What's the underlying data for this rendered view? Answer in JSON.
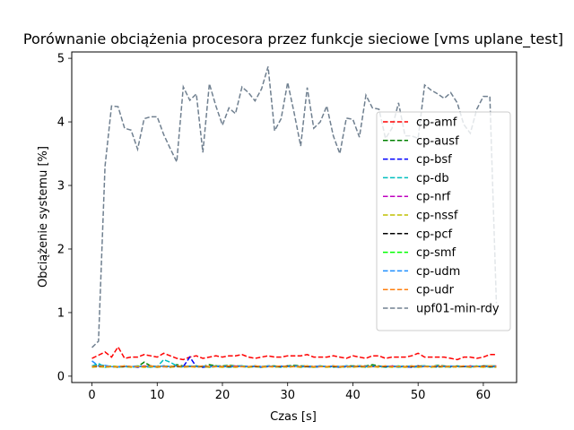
{
  "chart_data": {
    "type": "line",
    "title": "Porównanie obciążenia procesora przez funkcje sieciowe [vms uplane_test]",
    "xlabel": "Czas [s]",
    "ylabel": "Obciążenie systemu [%]",
    "xlim": [
      -3.1,
      65.1
    ],
    "ylim": [
      -0.1,
      5.1
    ],
    "x_ticks": [
      0,
      10,
      20,
      30,
      40,
      50,
      60
    ],
    "y_ticks": [
      0,
      1,
      2,
      3,
      4,
      5
    ],
    "grid": false,
    "legend_position": "right",
    "line_style": "dashed",
    "series": [
      {
        "name": "cp-amf",
        "color": "#ff0000",
        "values": [
          0.28,
          0.33,
          0.38,
          0.3,
          0.46,
          0.28,
          0.3,
          0.3,
          0.34,
          0.32,
          0.3,
          0.36,
          0.32,
          0.28,
          0.26,
          0.3,
          0.32,
          0.28,
          0.3,
          0.32,
          0.3,
          0.32,
          0.32,
          0.34,
          0.3,
          0.28,
          0.3,
          0.32,
          0.3,
          0.3,
          0.32,
          0.32,
          0.32,
          0.34,
          0.3,
          0.3,
          0.3,
          0.32,
          0.3,
          0.28,
          0.32,
          0.3,
          0.28,
          0.32,
          0.32,
          0.28,
          0.3,
          0.3,
          0.3,
          0.32,
          0.36,
          0.3,
          0.3,
          0.3,
          0.3,
          0.28,
          0.26,
          0.3,
          0.3,
          0.28,
          0.3,
          0.34,
          0.34
        ]
      },
      {
        "name": "cp-ausf",
        "color": "#008000",
        "values": [
          0.16,
          0.18,
          0.16,
          0.15,
          0.14,
          0.16,
          0.15,
          0.15,
          0.22,
          0.16,
          0.15,
          0.16,
          0.15,
          0.18,
          0.16,
          0.15,
          0.16,
          0.15,
          0.18,
          0.16,
          0.16,
          0.17,
          0.16,
          0.16,
          0.15,
          0.16,
          0.15,
          0.16,
          0.16,
          0.15,
          0.16,
          0.17,
          0.16,
          0.16,
          0.15,
          0.16,
          0.15,
          0.16,
          0.15,
          0.16,
          0.16,
          0.16,
          0.16,
          0.18,
          0.16,
          0.15,
          0.16,
          0.15,
          0.16,
          0.15,
          0.16,
          0.16,
          0.15,
          0.17,
          0.16,
          0.15,
          0.16,
          0.15,
          0.16,
          0.15,
          0.16,
          0.16,
          0.16
        ]
      },
      {
        "name": "cp-bsf",
        "color": "#0000ff",
        "values": [
          0.15,
          0.16,
          0.15,
          0.15,
          0.14,
          0.15,
          0.15,
          0.14,
          0.15,
          0.15,
          0.14,
          0.15,
          0.14,
          0.16,
          0.15,
          0.3,
          0.15,
          0.14,
          0.15,
          0.15,
          0.15,
          0.15,
          0.15,
          0.16,
          0.15,
          0.15,
          0.14,
          0.15,
          0.15,
          0.15,
          0.15,
          0.16,
          0.15,
          0.15,
          0.14,
          0.15,
          0.15,
          0.15,
          0.14,
          0.15,
          0.15,
          0.15,
          0.15,
          0.15,
          0.15,
          0.15,
          0.15,
          0.15,
          0.15,
          0.14,
          0.15,
          0.15,
          0.15,
          0.15,
          0.15,
          0.15,
          0.15,
          0.15,
          0.15,
          0.15,
          0.15,
          0.15,
          0.15
        ]
      },
      {
        "name": "cp-db",
        "color": "#00bfbf",
        "values": [
          0.16,
          0.2,
          0.14,
          0.15,
          0.14,
          0.15,
          0.14,
          0.15,
          0.15,
          0.14,
          0.15,
          0.26,
          0.22,
          0.16,
          0.14,
          0.15,
          0.16,
          0.15,
          0.14,
          0.15,
          0.15,
          0.14,
          0.15,
          0.15,
          0.14,
          0.15,
          0.14,
          0.15,
          0.15,
          0.14,
          0.15,
          0.15,
          0.14,
          0.15,
          0.14,
          0.15,
          0.15,
          0.14,
          0.15,
          0.14,
          0.15,
          0.15,
          0.14,
          0.15,
          0.15,
          0.14,
          0.15,
          0.14,
          0.15,
          0.15,
          0.14,
          0.15,
          0.15,
          0.14,
          0.15,
          0.14,
          0.15,
          0.15,
          0.14,
          0.15,
          0.15,
          0.14,
          0.15
        ]
      },
      {
        "name": "cp-nrf",
        "color": "#bf00bf",
        "values": [
          0.15,
          0.16,
          0.15,
          0.15,
          0.15,
          0.15,
          0.15,
          0.15,
          0.16,
          0.15,
          0.15,
          0.16,
          0.15,
          0.15,
          0.15,
          0.16,
          0.15,
          0.15,
          0.15,
          0.16,
          0.15,
          0.15,
          0.16,
          0.15,
          0.15,
          0.15,
          0.15,
          0.16,
          0.15,
          0.15,
          0.15,
          0.16,
          0.15,
          0.15,
          0.15,
          0.16,
          0.15,
          0.15,
          0.15,
          0.16,
          0.15,
          0.15,
          0.16,
          0.15,
          0.15,
          0.15,
          0.16,
          0.15,
          0.15,
          0.15,
          0.16,
          0.15,
          0.15,
          0.15,
          0.16,
          0.15,
          0.15,
          0.15,
          0.16,
          0.15,
          0.15,
          0.15,
          0.16
        ]
      },
      {
        "name": "cp-nssf",
        "color": "#bfbf00",
        "values": [
          0.14,
          0.15,
          0.14,
          0.15,
          0.14,
          0.15,
          0.14,
          0.15,
          0.14,
          0.15,
          0.14,
          0.15,
          0.14,
          0.15,
          0.14,
          0.15,
          0.14,
          0.15,
          0.14,
          0.15,
          0.14,
          0.15,
          0.14,
          0.15,
          0.14,
          0.15,
          0.14,
          0.15,
          0.14,
          0.15,
          0.14,
          0.15,
          0.14,
          0.15,
          0.14,
          0.15,
          0.14,
          0.15,
          0.14,
          0.15,
          0.14,
          0.15,
          0.14,
          0.15,
          0.14,
          0.15,
          0.14,
          0.15,
          0.14,
          0.15,
          0.14,
          0.15,
          0.14,
          0.15,
          0.14,
          0.15,
          0.14,
          0.15,
          0.14,
          0.15,
          0.14,
          0.15,
          0.14
        ]
      },
      {
        "name": "cp-pcf",
        "color": "#000000",
        "values": [
          0.15,
          0.15,
          0.16,
          0.15,
          0.15,
          0.15,
          0.15,
          0.15,
          0.15,
          0.16,
          0.15,
          0.15,
          0.15,
          0.15,
          0.15,
          0.15,
          0.15,
          0.15,
          0.15,
          0.16,
          0.15,
          0.15,
          0.15,
          0.15,
          0.15,
          0.15,
          0.15,
          0.15,
          0.15,
          0.15,
          0.16,
          0.15,
          0.15,
          0.15,
          0.15,
          0.15,
          0.15,
          0.15,
          0.15,
          0.15,
          0.16,
          0.15,
          0.15,
          0.15,
          0.15,
          0.15,
          0.15,
          0.15,
          0.15,
          0.15,
          0.16,
          0.15,
          0.15,
          0.15,
          0.15,
          0.15,
          0.15,
          0.15,
          0.15,
          0.15,
          0.16,
          0.15,
          0.15
        ]
      },
      {
        "name": "cp-smf",
        "color": "#00ff00",
        "values": [
          0.15,
          0.16,
          0.15,
          0.16,
          0.15,
          0.16,
          0.15,
          0.16,
          0.15,
          0.16,
          0.15,
          0.16,
          0.15,
          0.16,
          0.15,
          0.16,
          0.15,
          0.16,
          0.15,
          0.16,
          0.15,
          0.16,
          0.15,
          0.16,
          0.15,
          0.16,
          0.15,
          0.16,
          0.15,
          0.16,
          0.15,
          0.16,
          0.15,
          0.16,
          0.15,
          0.16,
          0.15,
          0.16,
          0.15,
          0.16,
          0.15,
          0.16,
          0.15,
          0.16,
          0.15,
          0.16,
          0.15,
          0.16,
          0.15,
          0.16,
          0.15,
          0.16,
          0.15,
          0.16,
          0.15,
          0.16,
          0.15,
          0.16,
          0.15,
          0.16,
          0.15,
          0.16,
          0.15
        ]
      },
      {
        "name": "cp-udm",
        "color": "#1f8fff",
        "values": [
          0.24,
          0.16,
          0.17,
          0.15,
          0.15,
          0.16,
          0.15,
          0.16,
          0.15,
          0.16,
          0.15,
          0.16,
          0.15,
          0.16,
          0.15,
          0.16,
          0.15,
          0.16,
          0.15,
          0.16,
          0.15,
          0.16,
          0.15,
          0.16,
          0.15,
          0.16,
          0.15,
          0.16,
          0.15,
          0.16,
          0.15,
          0.16,
          0.15,
          0.16,
          0.15,
          0.16,
          0.15,
          0.16,
          0.15,
          0.16,
          0.15,
          0.16,
          0.15,
          0.16,
          0.15,
          0.16,
          0.15,
          0.16,
          0.15,
          0.16,
          0.15,
          0.16,
          0.15,
          0.16,
          0.15,
          0.16,
          0.15,
          0.16,
          0.15,
          0.16,
          0.15,
          0.16,
          0.15
        ]
      },
      {
        "name": "cp-udr",
        "color": "#ff7f0e",
        "values": [
          0.15,
          0.16,
          0.15,
          0.15,
          0.15,
          0.16,
          0.15,
          0.15,
          0.15,
          0.16,
          0.15,
          0.15,
          0.15,
          0.16,
          0.15,
          0.15,
          0.15,
          0.16,
          0.15,
          0.15,
          0.15,
          0.16,
          0.15,
          0.15,
          0.15,
          0.16,
          0.15,
          0.15,
          0.15,
          0.16,
          0.15,
          0.15,
          0.15,
          0.16,
          0.15,
          0.15,
          0.15,
          0.16,
          0.15,
          0.15,
          0.15,
          0.16,
          0.15,
          0.15,
          0.15,
          0.16,
          0.15,
          0.15,
          0.15,
          0.16,
          0.15,
          0.15,
          0.15,
          0.16,
          0.15,
          0.15,
          0.15,
          0.16,
          0.15,
          0.15,
          0.15,
          0.16,
          0.15
        ]
      },
      {
        "name": "upf01-min-rdy",
        "color": "#708090",
        "values": [
          0.45,
          0.55,
          3.3,
          4.25,
          4.24,
          3.9,
          3.87,
          3.57,
          4.05,
          4.08,
          4.08,
          3.8,
          3.58,
          3.37,
          4.55,
          4.34,
          4.44,
          3.52,
          4.6,
          4.25,
          3.95,
          4.22,
          4.13,
          4.55,
          4.46,
          4.33,
          4.52,
          4.87,
          3.86,
          4.05,
          4.62,
          4.14,
          3.62,
          4.54,
          3.9,
          4.0,
          4.25,
          3.78,
          3.5,
          4.06,
          4.04,
          3.76,
          4.42,
          4.22,
          4.2,
          3.74,
          3.9,
          4.3,
          3.78,
          3.78,
          3.74,
          4.58,
          4.5,
          4.44,
          4.37,
          4.46,
          4.3,
          3.96,
          3.82,
          4.2,
          4.4,
          4.4,
          1.15
        ]
      }
    ]
  }
}
